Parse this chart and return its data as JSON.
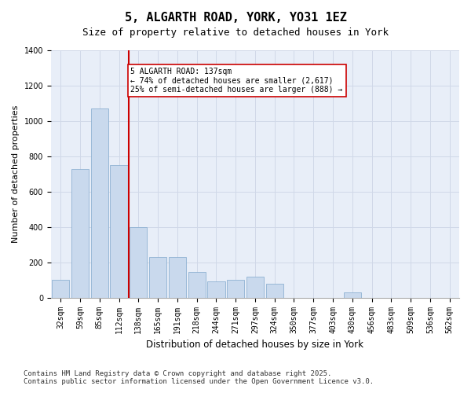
{
  "title1": "5, ALGARTH ROAD, YORK, YO31 1EZ",
  "title2": "Size of property relative to detached houses in York",
  "xlabel": "Distribution of detached houses by size in York",
  "ylabel": "Number of detached properties",
  "categories": [
    "32sqm",
    "59sqm",
    "85sqm",
    "112sqm",
    "138sqm",
    "165sqm",
    "191sqm",
    "218sqm",
    "244sqm",
    "271sqm",
    "297sqm",
    "324sqm",
    "350sqm",
    "377sqm",
    "403sqm",
    "430sqm",
    "456sqm",
    "483sqm",
    "509sqm",
    "536sqm",
    "562sqm"
  ],
  "values": [
    100,
    730,
    1070,
    750,
    400,
    230,
    230,
    145,
    90,
    100,
    120,
    80,
    0,
    0,
    0,
    30,
    0,
    0,
    0,
    0,
    0
  ],
  "bar_color": "#c9d9ed",
  "bar_edge_color": "#7fa8cc",
  "vline_x": 4,
  "vline_color": "#cc0000",
  "annotation_text": "5 ALGARTH ROAD: 137sqm\n← 74% of detached houses are smaller (2,617)\n25% of semi-detached houses are larger (888) →",
  "annotation_box_color": "#ffffff",
  "annotation_box_edge": "#cc0000",
  "ylim": [
    0,
    1400
  ],
  "yticks": [
    0,
    200,
    400,
    600,
    800,
    1000,
    1200,
    1400
  ],
  "grid_color": "#d0d8e8",
  "bg_color": "#e8eef8",
  "footer1": "Contains HM Land Registry data © Crown copyright and database right 2025.",
  "footer2": "Contains public sector information licensed under the Open Government Licence v3.0.",
  "title_fontsize": 11,
  "subtitle_fontsize": 9,
  "axis_label_fontsize": 8,
  "tick_fontsize": 7,
  "footer_fontsize": 6.5
}
